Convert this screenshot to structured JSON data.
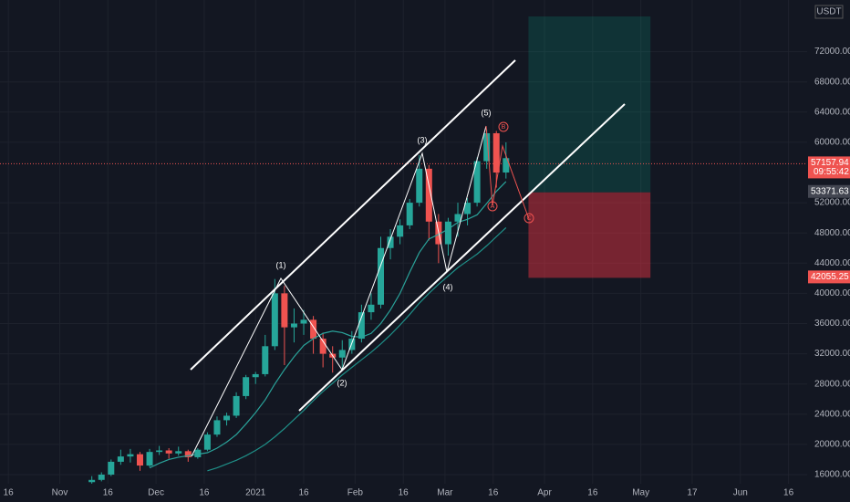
{
  "chart_data": {
    "type": "candlestick",
    "currency": "USDT",
    "countdown": "09:55:42",
    "x": [
      41,
      44,
      47,
      50,
      53,
      56,
      59,
      62,
      65,
      68,
      71,
      74,
      77,
      80,
      83,
      86,
      89,
      92,
      95,
      98,
      101,
      104,
      107,
      110,
      113,
      116,
      119,
      122,
      125,
      128,
      131,
      134,
      137,
      140,
      143,
      146,
      149,
      152,
      155,
      158,
      161,
      164,
      167,
      170
    ],
    "open": [
      15000,
      15300,
      16000,
      17700,
      18400,
      18700,
      17200,
      19000,
      19200,
      18800,
      19100,
      18300,
      19300,
      21300,
      23200,
      23800,
      26400,
      28900,
      29300,
      33000,
      40000,
      35500,
      36000,
      36500,
      34000,
      32000,
      31500,
      32500,
      34000,
      37500,
      38500,
      46000,
      47500,
      49000,
      52000,
      56500,
      49500,
      46500,
      49500,
      50500,
      52000,
      57500,
      61200,
      56000
    ],
    "high": [
      15800,
      16300,
      18000,
      19300,
      19400,
      19000,
      19400,
      19800,
      19500,
      19700,
      19300,
      19500,
      21600,
      23700,
      24200,
      26900,
      29200,
      29600,
      34500,
      41900,
      41000,
      38000,
      37800,
      37000,
      34800,
      33000,
      33800,
      35000,
      38500,
      40000,
      47500,
      48500,
      49800,
      52500,
      58300,
      57000,
      50500,
      50000,
      52000,
      52600,
      58000,
      61700,
      61500,
      60000
    ],
    "low": [
      14800,
      15100,
      15800,
      17300,
      17600,
      16500,
      17000,
      18600,
      18100,
      18500,
      17700,
      18100,
      19100,
      21000,
      22500,
      23500,
      26000,
      28000,
      29000,
      32500,
      30500,
      33500,
      34500,
      32000,
      30200,
      29500,
      29800,
      32000,
      33500,
      36500,
      38000,
      44500,
      46500,
      48500,
      51500,
      47000,
      44000,
      45000,
      47500,
      49000,
      51500,
      56500,
      54000,
      55200
    ],
    "close": [
      15300,
      16000,
      17700,
      18400,
      18700,
      17200,
      19000,
      19200,
      18800,
      19100,
      18300,
      19300,
      21300,
      23200,
      23800,
      26400,
      28900,
      29300,
      33000,
      40000,
      35500,
      36000,
      36500,
      34000,
      32000,
      31500,
      32500,
      34000,
      37500,
      38500,
      46000,
      47500,
      49000,
      52000,
      56500,
      49500,
      46500,
      49500,
      50500,
      52000,
      57500,
      61200,
      56000,
      57900
    ],
    "up_color": "#26a69a",
    "down_color": "#ef5350",
    "moving_averages": [
      {
        "color": "#2aa39a",
        "values": [
          null,
          null,
          null,
          null,
          null,
          null,
          16900,
          17500,
          18000,
          18300,
          18500,
          18700,
          18900,
          19500,
          20300,
          21300,
          22700,
          24200,
          25900,
          28000,
          29900,
          31600,
          33100,
          34000,
          34700,
          35000,
          34800,
          34300,
          34200,
          34700,
          36000,
          37800,
          40000,
          42800,
          45400,
          47200,
          47800,
          48500,
          49400,
          49800,
          50400,
          51900,
          53500,
          54800
        ]
      },
      {
        "color": "#1f8f88",
        "values": [
          null,
          null,
          null,
          null,
          null,
          null,
          null,
          null,
          null,
          null,
          null,
          null,
          16500,
          16900,
          17400,
          17900,
          18500,
          19200,
          20000,
          21000,
          22100,
          23300,
          24500,
          25800,
          27000,
          28100,
          29200,
          30200,
          31200,
          32200,
          33300,
          34500,
          35800,
          37200,
          38700,
          40000,
          41200,
          42300,
          43400,
          44300,
          45200,
          46300,
          47500,
          48700
        ]
      }
    ],
    "wave_labels": [
      "(1)",
      "(2)",
      "(3)",
      "(4)",
      "(5)",
      "A",
      "B",
      "C"
    ],
    "last_price": 57157.94,
    "position": {
      "x": [
        177,
        215
      ],
      "entry": 53371.63,
      "target": 76660,
      "stop": 42055.25
    },
    "xlim": [
      12.4,
      263.8
    ],
    "ylim": [
      14790,
      78840
    ],
    "yticks": [
      {
        "value": 16000,
        "label": "16000.00"
      },
      {
        "value": 20000,
        "label": "20000.00"
      },
      {
        "value": 24000,
        "label": "24000.00"
      },
      {
        "value": 28000,
        "label": "28000.00"
      },
      {
        "value": 32000,
        "label": "32000.00"
      },
      {
        "value": 36000,
        "label": "36000.00"
      },
      {
        "value": 40000,
        "label": "40000.00"
      },
      {
        "value": 44000,
        "label": "44000.00"
      },
      {
        "value": 48000,
        "label": "48000.00"
      },
      {
        "value": 52000,
        "label": "52000.00"
      },
      {
        "value": 60000,
        "label": "60000.00"
      },
      {
        "value": 64000,
        "label": "64000.00"
      },
      {
        "value": 68000,
        "label": "68000.00"
      },
      {
        "value": 72000,
        "label": "72000.00"
      }
    ],
    "xticks": [
      {
        "value": 15,
        "label": "16"
      },
      {
        "value": 31,
        "label": "Nov"
      },
      {
        "value": 46,
        "label": "16"
      },
      {
        "value": 61,
        "label": "Dec"
      },
      {
        "value": 76,
        "label": "16"
      },
      {
        "value": 92,
        "label": "2021"
      },
      {
        "value": 107,
        "label": "16"
      },
      {
        "value": 123,
        "label": "Feb"
      },
      {
        "value": 138,
        "label": "16"
      },
      {
        "value": 151,
        "label": "Mar"
      },
      {
        "value": 166,
        "label": "16"
      },
      {
        "value": 182,
        "label": "Apr"
      },
      {
        "value": 197,
        "label": "16"
      },
      {
        "value": 212,
        "label": "May"
      },
      {
        "value": 228,
        "label": "17"
      },
      {
        "value": 243,
        "label": "Jun"
      },
      {
        "value": 258,
        "label": "16"
      }
    ],
    "grid": true
  }
}
